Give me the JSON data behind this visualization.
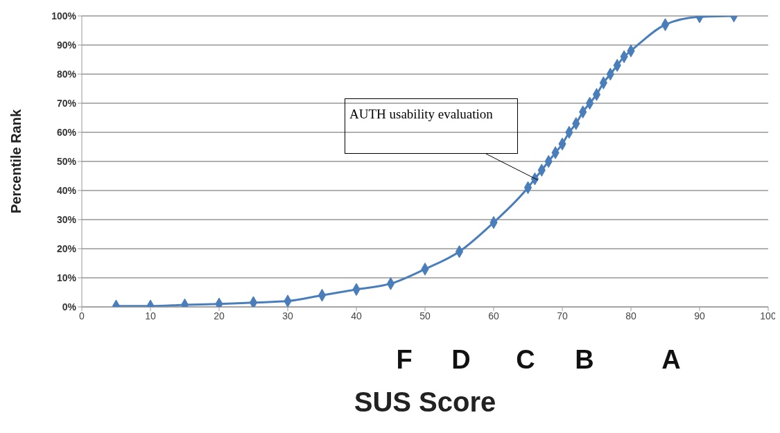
{
  "chart_data": {
    "type": "line",
    "xlabel": "SUS Score",
    "ylabel": "Percentile Rank",
    "x": [
      5,
      10,
      15,
      20,
      25,
      30,
      35,
      40,
      45,
      50,
      55,
      60,
      65,
      66,
      67,
      68,
      69,
      70,
      71,
      72,
      73,
      74,
      75,
      76,
      77,
      78,
      79,
      80,
      85,
      90,
      95
    ],
    "series": [
      {
        "color": "#4a7ebb",
        "values": [
          0.3,
          0.3,
          0.7,
          1,
          1.5,
          2,
          4,
          6,
          8,
          13,
          19,
          29,
          41,
          44,
          47,
          50,
          53,
          56,
          60,
          63,
          67,
          70,
          73,
          77,
          80,
          83,
          86,
          88,
          97,
          99.7,
          100
        ]
      }
    ],
    "xlim": [
      0,
      100
    ],
    "xticks": [
      0,
      10,
      20,
      30,
      40,
      50,
      60,
      70,
      80,
      90,
      100
    ],
    "ylim": [
      0,
      100
    ],
    "yticks": [
      {
        "value": 0,
        "label": "0%"
      },
      {
        "value": 10,
        "label": "10%"
      },
      {
        "value": 20,
        "label": "20%"
      },
      {
        "value": 30,
        "label": "30%"
      },
      {
        "value": 40,
        "label": "40%"
      },
      {
        "value": 50,
        "label": "50%"
      },
      {
        "value": 60,
        "label": "60%"
      },
      {
        "value": 70,
        "label": "70%"
      },
      {
        "value": 80,
        "label": "80%"
      },
      {
        "value": 90,
        "label": "90%"
      },
      {
        "value": 100,
        "label": "100%"
      }
    ],
    "grid": "y",
    "marker": "diamond",
    "line_style": "solid",
    "annotations": [
      "AUTH usability evaluation",
      "F",
      "D",
      "C",
      "B",
      "A"
    ]
  }
}
